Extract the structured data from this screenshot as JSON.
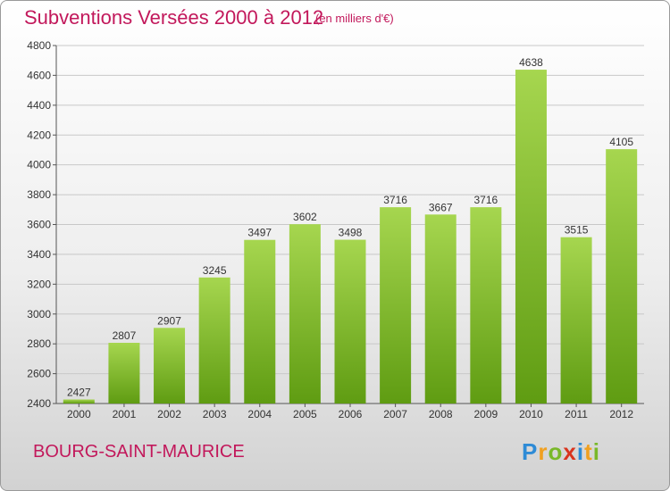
{
  "title": "Subventions Versées 2000 à 2012",
  "subtitle": "(en milliers d'€)",
  "commune": "BOURG-SAINT-MAURICE",
  "logo": {
    "letters": [
      "P",
      "r",
      "o",
      "x",
      "i",
      "t",
      "i"
    ],
    "colors": [
      "#2e8bd6",
      "#f0a020",
      "#79b829",
      "#d9341e",
      "#2e8bd6",
      "#f0a020",
      "#79b829"
    ]
  },
  "colors": {
    "bar_top": "#a6d64f",
    "bar_bottom": "#5f9c12",
    "accent": "#c2185b"
  },
  "chart_data": {
    "type": "bar",
    "title": "Subventions Versées 2000 à 2012",
    "subtitle": "(en milliers d'€)",
    "categories": [
      "2000",
      "2001",
      "2002",
      "2003",
      "2004",
      "2005",
      "2006",
      "2007",
      "2008",
      "2009",
      "2010",
      "2011",
      "2012"
    ],
    "values": [
      2427,
      2807,
      2907,
      3245,
      3497,
      3602,
      3498,
      3716,
      3667,
      3716,
      4638,
      3515,
      4105
    ],
    "ylim": [
      2400,
      4800
    ],
    "yticks": [
      2400,
      2600,
      2800,
      3000,
      3200,
      3400,
      3600,
      3800,
      4000,
      4200,
      4400,
      4600,
      4800
    ],
    "grid": true,
    "legend": "none"
  }
}
